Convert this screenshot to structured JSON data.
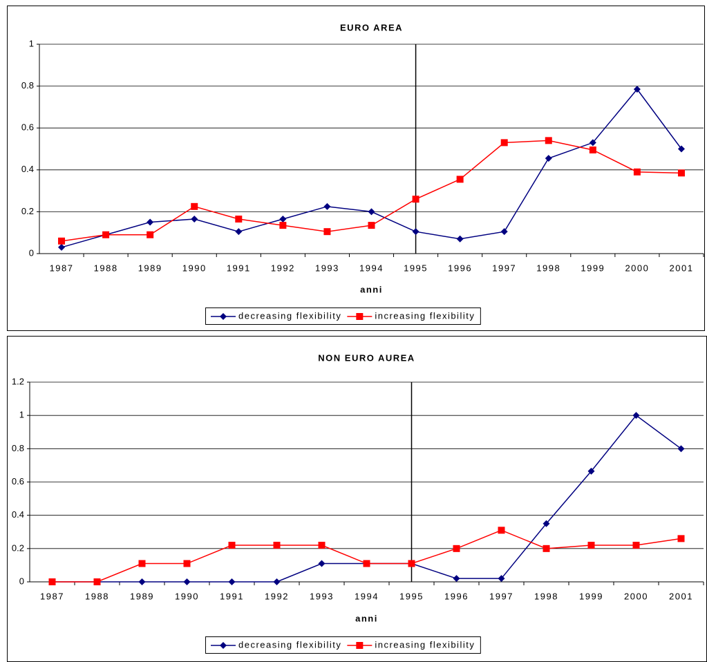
{
  "chart_data": [
    {
      "type": "line",
      "title": "EURO AREA",
      "x_label": "anni",
      "categories": [
        "1987",
        "1988",
        "1989",
        "1990",
        "1991",
        "1992",
        "1993",
        "1994",
        "1995",
        "1996",
        "1997",
        "1998",
        "1999",
        "2000",
        "2001"
      ],
      "reference_line": "1995",
      "series": [
        {
          "name": "decreasing flexibility",
          "color": "#000080",
          "marker": "diamond",
          "values": [
            0.03,
            0.09,
            0.15,
            0.165,
            0.105,
            0.165,
            0.225,
            0.2,
            0.105,
            0.07,
            0.105,
            0.455,
            0.53,
            0.785,
            0.5
          ]
        },
        {
          "name": "increasing flexibility",
          "color": "#ff0000",
          "marker": "square",
          "values": [
            0.06,
            0.09,
            0.09,
            0.225,
            0.165,
            0.135,
            0.105,
            0.135,
            0.26,
            0.355,
            0.53,
            0.54,
            0.495,
            0.39,
            0.385
          ]
        }
      ],
      "ylim": [
        0,
        1
      ],
      "yticks": [
        0,
        0.2,
        0.4,
        0.6,
        0.8,
        1
      ],
      "grid": true,
      "legend": "bottom"
    },
    {
      "type": "line",
      "title": "NON EURO AUREA",
      "x_label": "anni",
      "categories": [
        "1987",
        "1988",
        "1989",
        "1990",
        "1991",
        "1992",
        "1993",
        "1994",
        "1995",
        "1996",
        "1997",
        "1998",
        "1999",
        "2000",
        "2001"
      ],
      "reference_line": "1995",
      "series": [
        {
          "name": "decreasing flexibility",
          "color": "#000080",
          "marker": "diamond",
          "values": [
            0,
            0,
            0,
            0,
            0,
            0,
            0.11,
            0.11,
            0.11,
            0.02,
            0.02,
            0.35,
            0.665,
            1,
            0.8
          ]
        },
        {
          "name": "increasing flexibility",
          "color": "#ff0000",
          "marker": "square",
          "values": [
            0,
            0,
            0.11,
            0.11,
            0.22,
            0.22,
            0.22,
            0.11,
            0.11,
            0.2,
            0.31,
            0.2,
            0.22,
            0.22,
            0.26
          ]
        }
      ],
      "ylim": [
        0,
        1.2
      ],
      "yticks": [
        0,
        0.2,
        0.4,
        0.6,
        0.8,
        1,
        1.2
      ],
      "grid": true,
      "legend": "bottom"
    }
  ]
}
